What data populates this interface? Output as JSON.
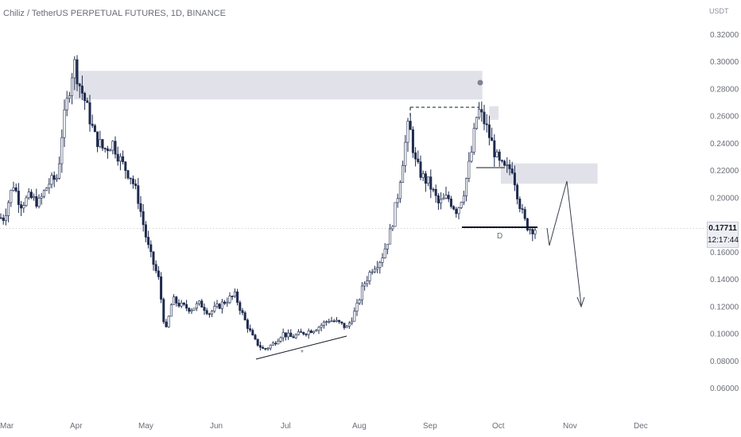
{
  "header": {
    "title": "Chiliz / TetherUS PERPETUAL FUTURES, 1D, BINANCE",
    "unit": "USDT"
  },
  "price_tag": {
    "price": "0.17711",
    "countdown": "12:17:44"
  },
  "colors": {
    "up": "#ffffff",
    "down": "#1e2a4e",
    "wick": "#1e2a4e",
    "zone": "#dcdde5",
    "axis_text": "#6a6d78"
  },
  "annotations": {
    "pattern_label": "D",
    "small_label": "*"
  },
  "chart_data": {
    "type": "candlestick",
    "title": "Chiliz / TetherUS PERPETUAL FUTURES, 1D, BINANCE",
    "y_ticks": [
      "0.32000",
      "0.30000",
      "0.28000",
      "0.26000",
      "0.24000",
      "0.22000",
      "0.20000",
      "0.16000",
      "0.14000",
      "0.12000",
      "0.10000",
      "0.08000",
      "0.06000"
    ],
    "x_ticks": [
      "Mar",
      "Apr",
      "May",
      "Jun",
      "Jul",
      "Aug",
      "Sep",
      "Oct",
      "Nov",
      "Dec"
    ],
    "ylim": [
      0.045,
      0.335
    ],
    "grid": false,
    "close_path": [
      [
        "Mar 1",
        0.185
      ],
      [
        "Mar 5",
        0.21
      ],
      [
        "Mar 8",
        0.195
      ],
      [
        "Mar 12",
        0.2
      ],
      [
        "Mar 16",
        0.196
      ],
      [
        "Mar 20",
        0.21
      ],
      [
        "Mar 24",
        0.215
      ],
      [
        "Mar 26",
        0.25
      ],
      [
        "Mar 29",
        0.28
      ],
      [
        "Mar 31",
        0.3
      ],
      [
        "Apr 2",
        0.285
      ],
      [
        "Apr 5",
        0.27
      ],
      [
        "Apr 9",
        0.245
      ],
      [
        "Apr 13",
        0.235
      ],
      [
        "Apr 17",
        0.24
      ],
      [
        "Apr 21",
        0.225
      ],
      [
        "Apr 25",
        0.215
      ],
      [
        "Apr 28",
        0.2
      ],
      [
        "May 1",
        0.175
      ],
      [
        "May 3",
        0.16
      ],
      [
        "May 7",
        0.14
      ],
      [
        "May 10",
        0.1
      ],
      [
        "May 13",
        0.125
      ],
      [
        "May 17",
        0.12
      ],
      [
        "May 21",
        0.118
      ],
      [
        "May 25",
        0.122
      ],
      [
        "May 29",
        0.115
      ],
      [
        "Jun 2",
        0.12
      ],
      [
        "Jun 6",
        0.125
      ],
      [
        "Jun 9",
        0.128
      ],
      [
        "Jun 13",
        0.11
      ],
      [
        "Jun 17",
        0.095
      ],
      [
        "Jun 21",
        0.088
      ],
      [
        "Jun 25",
        0.092
      ],
      [
        "Jun 29",
        0.1
      ],
      [
        "Jul 3",
        0.097
      ],
      [
        "Jul 7",
        0.1
      ],
      [
        "Jul 11",
        0.102
      ],
      [
        "Jul 15",
        0.105
      ],
      [
        "Jul 19",
        0.11
      ],
      [
        "Jul 23",
        0.108
      ],
      [
        "Jul 27",
        0.104
      ],
      [
        "Jul 31",
        0.118
      ],
      [
        "Aug 3",
        0.135
      ],
      [
        "Aug 7",
        0.148
      ],
      [
        "Aug 11",
        0.155
      ],
      [
        "Aug 15",
        0.175
      ],
      [
        "Aug 18",
        0.2
      ],
      [
        "Aug 21",
        0.235
      ],
      [
        "Aug 23",
        0.255
      ],
      [
        "Aug 26",
        0.225
      ],
      [
        "Aug 29",
        0.215
      ],
      [
        "Sep 1",
        0.21
      ],
      [
        "Sep 5",
        0.195
      ],
      [
        "Sep 9",
        0.2
      ],
      [
        "Sep 13",
        0.19
      ],
      [
        "Sep 16",
        0.205
      ],
      [
        "Sep 19",
        0.23
      ],
      [
        "Sep 22",
        0.265
      ],
      [
        "Sep 25",
        0.255
      ],
      [
        "Sep 28",
        0.24
      ],
      [
        "Oct 1",
        0.225
      ],
      [
        "Oct 4",
        0.22
      ],
      [
        "Oct 7",
        0.222
      ],
      [
        "Oct 9",
        0.205
      ],
      [
        "Oct 11",
        0.19
      ],
      [
        "Oct 13",
        0.18
      ],
      [
        "Oct 15",
        0.177
      ]
    ],
    "zones": [
      {
        "from": "Mar 31",
        "to": "Sep 24",
        "low": 0.272,
        "high": 0.293
      },
      {
        "from": "Sep 27",
        "to": "Oct 1",
        "low": 0.257,
        "high": 0.267
      },
      {
        "from": "Oct 2",
        "to": "Nov 13",
        "low": 0.21,
        "high": 0.225
      }
    ],
    "last_price": 0.17711
  }
}
